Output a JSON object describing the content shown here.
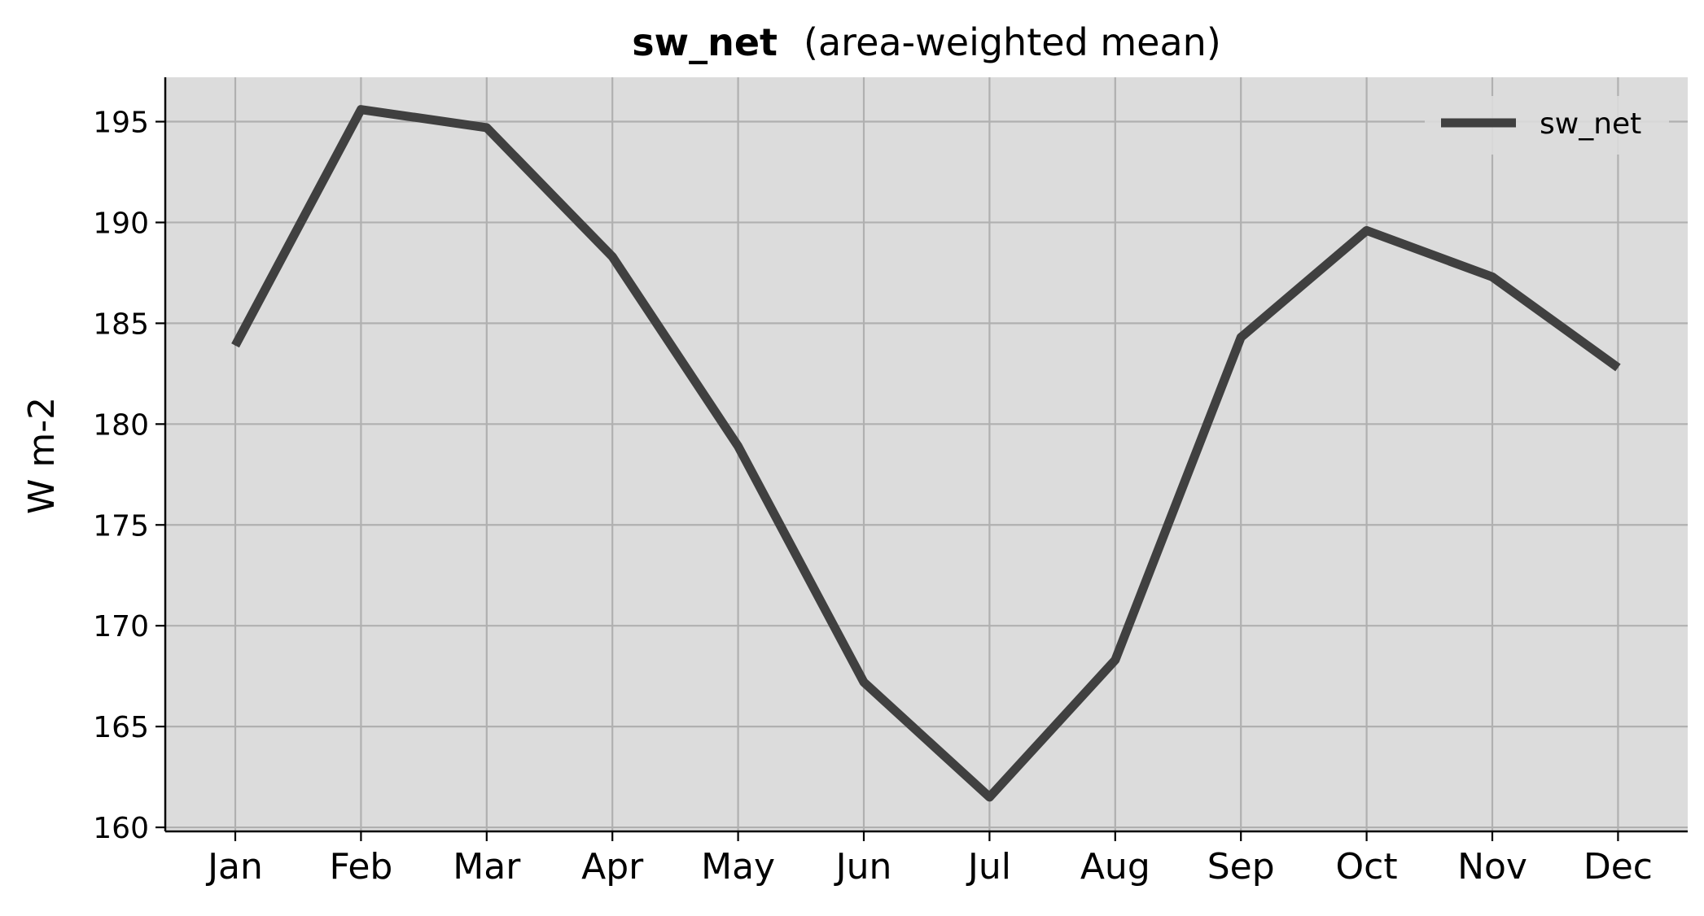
{
  "chart_data": {
    "type": "line",
    "title_bold": "sw_net",
    "title_rest": "(area-weighted mean)",
    "xlabel": "",
    "ylabel": "W m-2",
    "categories": [
      "Jan",
      "Feb",
      "Mar",
      "Apr",
      "May",
      "Jun",
      "Jul",
      "Aug",
      "Sep",
      "Oct",
      "Nov",
      "Dec"
    ],
    "series": [
      {
        "name": "sw_net",
        "values": [
          183.9,
          195.6,
          194.7,
          188.3,
          178.9,
          167.2,
          161.5,
          168.3,
          184.3,
          189.6,
          187.3,
          182.8
        ]
      }
    ],
    "ylim": [
      159.8,
      197.2
    ],
    "yticks": [
      160,
      165,
      170,
      175,
      180,
      185,
      190,
      195
    ],
    "grid": true,
    "legend_position": "top-right",
    "colors": {
      "line": "#404040",
      "plot_bg": "#dcdcdc",
      "grid": "#b0b0b0"
    }
  }
}
